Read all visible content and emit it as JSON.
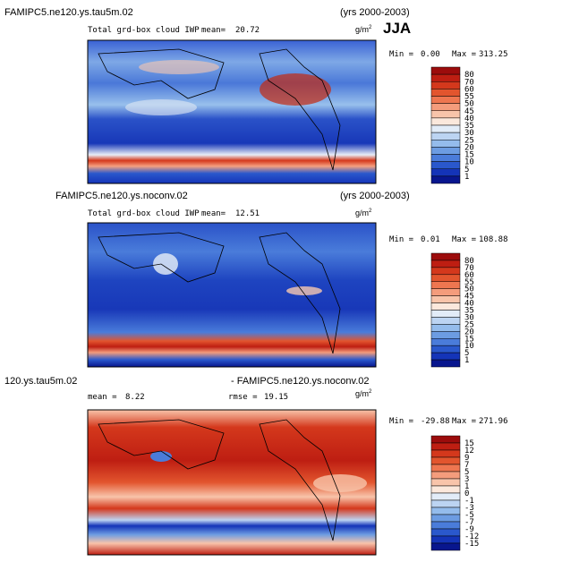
{
  "season": "JJA",
  "panels": [
    {
      "title": "FAMIPC5.ne120.ys.tau5m.02",
      "years": "(yrs 2000-2003)",
      "subtitle": "Total grd-box cloud IWP",
      "mean_label": "mean=",
      "mean": 20.72,
      "units": "g/m",
      "units_power": 2,
      "min_label": "Min =",
      "min": "0.00",
      "max_label": "Max =",
      "max": 313.25,
      "levels": [
        80,
        70,
        60,
        55,
        50,
        45,
        40,
        35,
        30,
        25,
        20,
        15,
        10,
        5,
        1
      ],
      "colors": [
        "#9c0c0c",
        "#be1e12",
        "#d4381c",
        "#e2552e",
        "#ee7650",
        "#f49c7c",
        "#f8c4aa",
        "#fbe8dc",
        "#e2ecf8",
        "#bcd4f2",
        "#94bcec",
        "#6c9ce2",
        "#4a7cda",
        "#2a58cc",
        "#1434b8",
        "#08168e"
      ]
    },
    {
      "title": "FAMIPC5.ne120.ys.noconv.02",
      "years": "(yrs 2000-2003)",
      "subtitle": "Total grd-box cloud IWP",
      "mean_label": "mean=",
      "mean": 12.51,
      "units": "g/m",
      "units_power": 2,
      "min_label": "Min =",
      "min": 0.01,
      "max_label": "Max =",
      "max": 108.88,
      "levels": [
        80,
        70,
        60,
        55,
        50,
        45,
        40,
        35,
        30,
        25,
        20,
        15,
        10,
        5,
        1
      ],
      "colors": [
        "#9c0c0c",
        "#be1e12",
        "#d4381c",
        "#e2552e",
        "#ee7650",
        "#f49c7c",
        "#f8c4aa",
        "#fbe8dc",
        "#e2ecf8",
        "#bcd4f2",
        "#94bcec",
        "#6c9ce2",
        "#4a7cda",
        "#2a58cc",
        "#1434b8",
        "#08168e"
      ]
    },
    {
      "title": "120.ys.tau5m.02",
      "title2": "- FAMIPC5.ne120.ys.noconv.02",
      "mean_label": "mean =",
      "mean": 8.22,
      "rmse_label": "rmse =",
      "rmse": 19.15,
      "units": "g/m",
      "units_power": 2,
      "min_label": "Min =",
      "min": -29.88,
      "max_label": "Max =",
      "max": 271.96,
      "levels": [
        15,
        12,
        9,
        7,
        5,
        3,
        1,
        0,
        -1,
        -3,
        -5,
        -7,
        -9,
        -12,
        -15
      ],
      "colors": [
        "#9c0c0c",
        "#be1e12",
        "#d4381c",
        "#e2552e",
        "#ee7650",
        "#f49c7c",
        "#f8c4aa",
        "#fbe8dc",
        "#e2ecf8",
        "#bcd4f2",
        "#94bcec",
        "#6c9ce2",
        "#4a7cda",
        "#2a58cc",
        "#1434b8",
        "#08168e"
      ]
    }
  ]
}
